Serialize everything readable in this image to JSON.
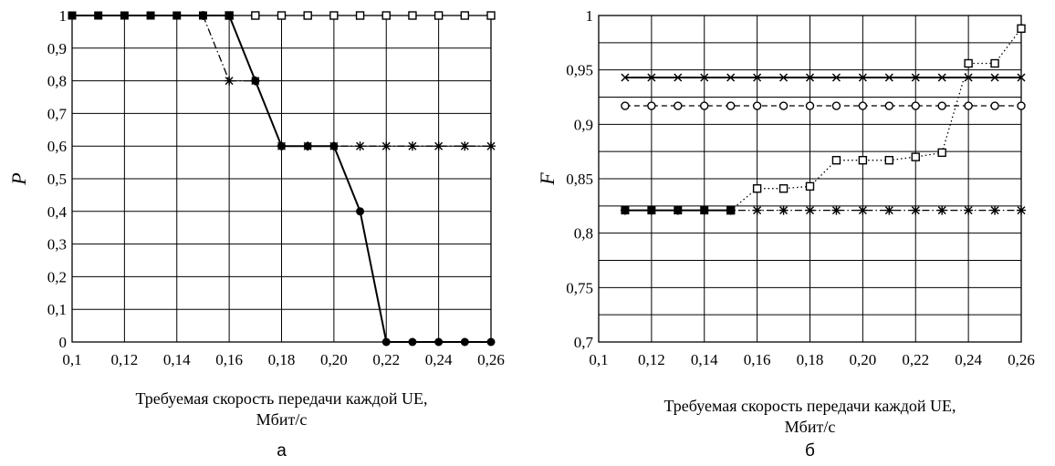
{
  "chart_data": [
    {
      "type": "line",
      "panel_label": "а",
      "xlabel_lines": [
        "Требуемая скорость передачи каждой UE,",
        "Мбит/с"
      ],
      "ylabel": "P",
      "xlim": [
        0.1,
        0.26
      ],
      "ylim": [
        0,
        1
      ],
      "x_ticks": [
        "0,1",
        "0,12",
        "0,14",
        "0,16",
        "0,18",
        "0,20",
        "0,22",
        "0,24",
        "0,26"
      ],
      "y_ticks": [
        "0",
        "0,1",
        "0,2",
        "0,3",
        "0,4",
        "0,5",
        "0,6",
        "0,7",
        "0,8",
        "0,9",
        "1"
      ],
      "grid": true,
      "x_grid_step": 0.02,
      "y_grid_step": 0.1,
      "series": [
        {
          "marker": "open-square",
          "line": "none",
          "x": [
            0.16,
            0.17,
            0.18,
            0.19,
            0.2,
            0.21,
            0.22,
            0.23,
            0.24,
            0.25,
            0.26
          ],
          "y": [
            1,
            1,
            1,
            1,
            1,
            1,
            1,
            1,
            1,
            1,
            1
          ]
        },
        {
          "marker": "asterisk",
          "line": "dashdot",
          "x": [
            0.15,
            0.16,
            0.17,
            0.18,
            0.19,
            0.2,
            0.21,
            0.22,
            0.23,
            0.24,
            0.25,
            0.26
          ],
          "y": [
            1,
            0.8,
            0.8,
            0.6,
            0.6,
            0.6,
            0.6,
            0.6,
            0.6,
            0.6,
            0.6,
            0.6
          ]
        },
        {
          "marker": "filled-circle",
          "line": "solid",
          "x": [
            0.16,
            0.17,
            0.18,
            0.19,
            0.2,
            0.21,
            0.22,
            0.23,
            0.24,
            0.25,
            0.26
          ],
          "y": [
            1,
            0.8,
            0.6,
            0.6,
            0.6,
            0.4,
            0,
            0,
            0,
            0,
            0
          ]
        },
        {
          "marker": "filled-square",
          "line": "solid",
          "x": [
            0.1,
            0.11,
            0.12,
            0.13,
            0.14,
            0.15,
            0.16
          ],
          "y": [
            1,
            1,
            1,
            1,
            1,
            1,
            1
          ]
        }
      ]
    },
    {
      "type": "line",
      "panel_label": "б",
      "xlabel_lines": [
        "Требуемая скорость передачи каждой UE,",
        "Мбит/с"
      ],
      "ylabel": "F",
      "xlim": [
        0.1,
        0.26
      ],
      "ylim": [
        0.7,
        1
      ],
      "x_ticks": [
        "0,1",
        "0,12",
        "0,14",
        "0,16",
        "0,18",
        "0,20",
        "0,22",
        "0,24",
        "0,26"
      ],
      "y_ticks": [
        "0,7",
        "0,75",
        "0,8",
        "0,85",
        "0,9",
        "0,95",
        "1"
      ],
      "grid": true,
      "x_grid_step": 0.02,
      "y_grid_step": 0.025,
      "series": [
        {
          "marker": "x",
          "line": "solid",
          "x": [
            0.11,
            0.12,
            0.13,
            0.14,
            0.15,
            0.16,
            0.17,
            0.18,
            0.19,
            0.2,
            0.21,
            0.22,
            0.23,
            0.24,
            0.25,
            0.26
          ],
          "y": [
            0.943,
            0.943,
            0.943,
            0.943,
            0.943,
            0.943,
            0.943,
            0.943,
            0.943,
            0.943,
            0.943,
            0.943,
            0.943,
            0.943,
            0.943,
            0.943
          ]
        },
        {
          "marker": "open-circle",
          "line": "dashed",
          "x": [
            0.11,
            0.12,
            0.13,
            0.14,
            0.15,
            0.16,
            0.17,
            0.18,
            0.19,
            0.2,
            0.21,
            0.22,
            0.23,
            0.24,
            0.25,
            0.26
          ],
          "y": [
            0.917,
            0.917,
            0.917,
            0.917,
            0.917,
            0.917,
            0.917,
            0.917,
            0.917,
            0.917,
            0.917,
            0.917,
            0.917,
            0.917,
            0.917,
            0.917
          ]
        },
        {
          "marker": "open-square",
          "line": "dotted",
          "x": [
            0.15,
            0.16,
            0.17,
            0.18,
            0.19,
            0.2,
            0.21,
            0.22,
            0.23,
            0.24,
            0.25,
            0.26
          ],
          "y": [
            0.821,
            0.841,
            0.841,
            0.843,
            0.867,
            0.867,
            0.867,
            0.87,
            0.874,
            0.956,
            0.956,
            0.988
          ]
        },
        {
          "marker": "asterisk",
          "line": "dashdot",
          "x": [
            0.11,
            0.12,
            0.13,
            0.14,
            0.15,
            0.16,
            0.17,
            0.18,
            0.19,
            0.2,
            0.21,
            0.22,
            0.23,
            0.24,
            0.25,
            0.26
          ],
          "y": [
            0.821,
            0.821,
            0.821,
            0.821,
            0.821,
            0.821,
            0.821,
            0.821,
            0.821,
            0.821,
            0.821,
            0.821,
            0.821,
            0.821,
            0.821,
            0.821
          ]
        },
        {
          "marker": "filled-square",
          "line": "solid",
          "x": [
            0.11,
            0.12,
            0.13,
            0.14,
            0.15
          ],
          "y": [
            0.821,
            0.821,
            0.821,
            0.821,
            0.821
          ]
        }
      ]
    }
  ]
}
